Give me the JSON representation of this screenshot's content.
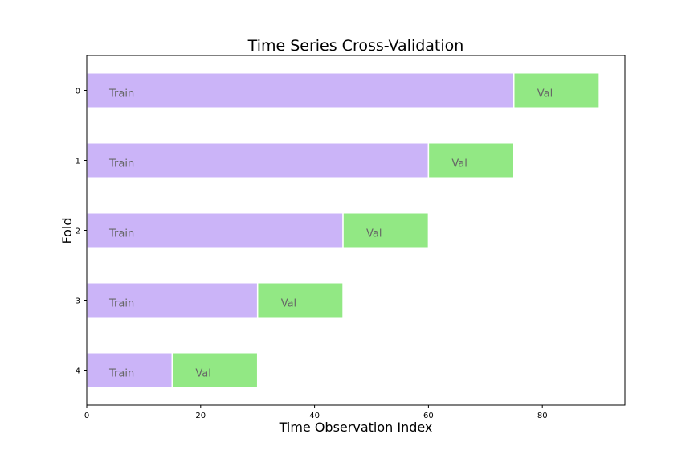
{
  "chart_data": {
    "type": "bar",
    "orientation": "horizontal",
    "stacked": true,
    "title": "Time Series Cross-Validation",
    "xlabel": "Time Observation Index",
    "ylabel": "Fold",
    "xlim": [
      0,
      94.5
    ],
    "xticks": [
      0,
      20,
      40,
      60,
      80
    ],
    "categories": [
      "0",
      "1",
      "2",
      "3",
      "4"
    ],
    "grid": false,
    "series": [
      {
        "name": "Train",
        "color": "#cbb4f8",
        "values": [
          75,
          60,
          45,
          30,
          15
        ]
      },
      {
        "name": "Val",
        "color": "#92e884",
        "values": [
          15,
          15,
          15,
          15,
          15
        ]
      }
    ],
    "bar_labels": {
      "train": "Train",
      "val": "Val"
    }
  }
}
